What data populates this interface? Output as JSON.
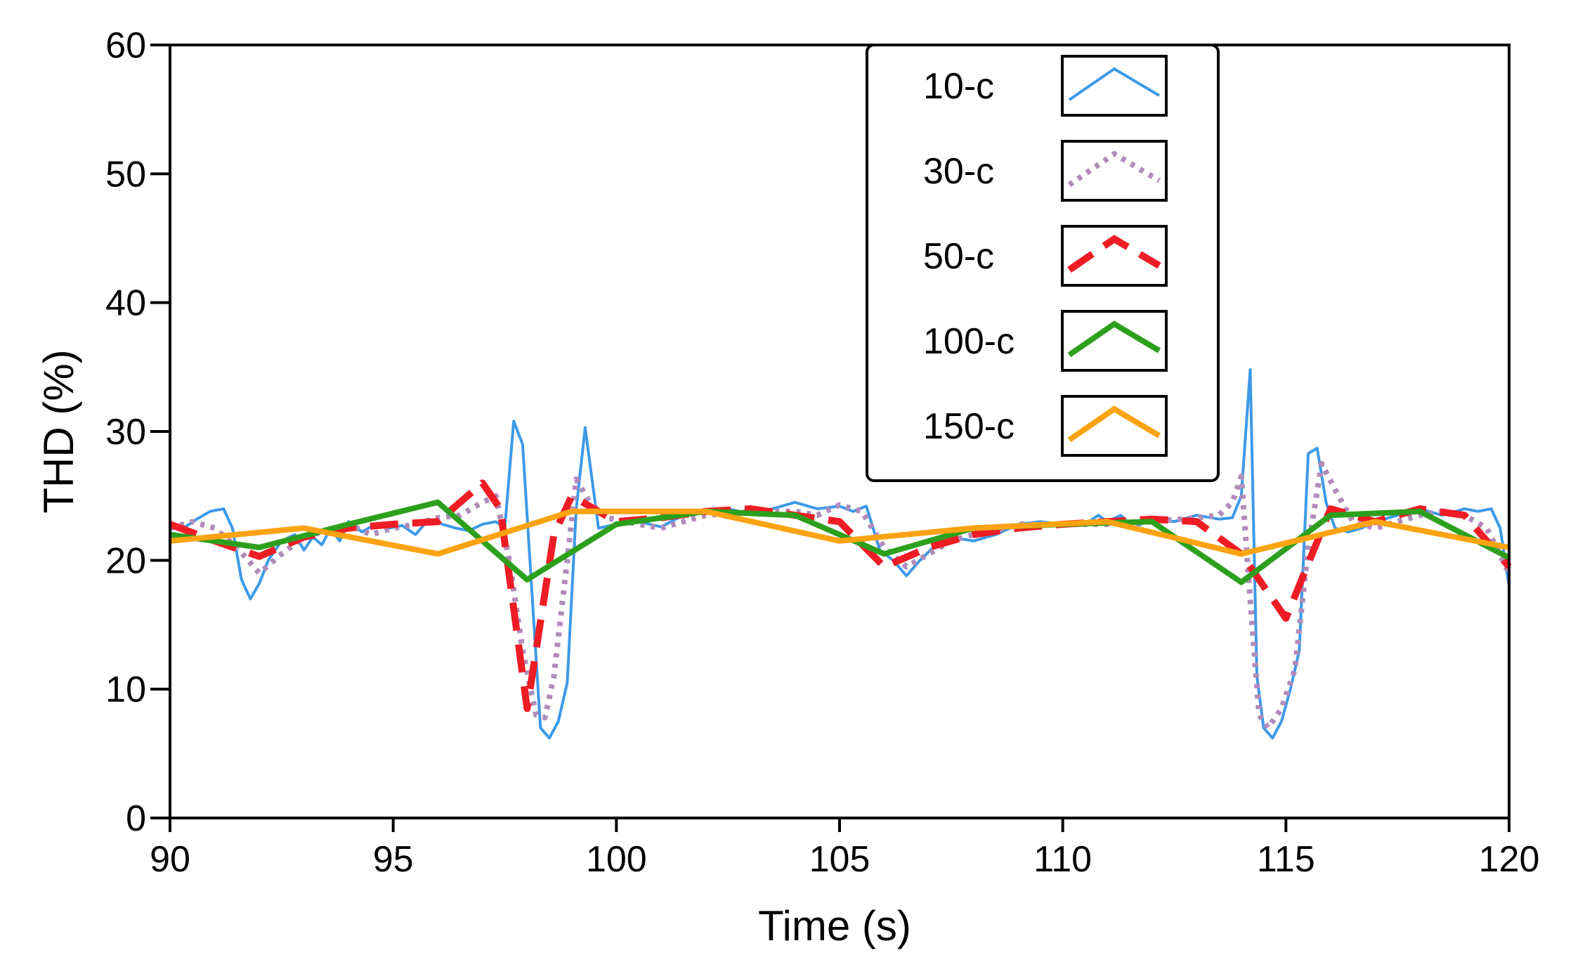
{
  "chart_data": {
    "type": "line",
    "title": "",
    "xlabel": "Time (s)",
    "ylabel": "THD (%)",
    "xlim": [
      90,
      120
    ],
    "ylim": [
      0,
      60
    ],
    "xticks": [
      90,
      95,
      100,
      105,
      110,
      115,
      120
    ],
    "yticks": [
      0,
      10,
      20,
      30,
      40,
      50,
      60
    ],
    "grid": false,
    "legend_position": "top-right",
    "series": [
      {
        "name": "10-c",
        "color": "#3d9ae8",
        "style": "solid-thin",
        "x": [
          90,
          90.3,
          90.6,
          90.9,
          91.2,
          91.4,
          91.6,
          91.8,
          92.0,
          92.2,
          92.5,
          92.8,
          93.0,
          93.2,
          93.4,
          93.6,
          93.8,
          94.0,
          94.3,
          94.6,
          94.9,
          95.2,
          95.5,
          95.8,
          96.1,
          96.4,
          96.7,
          97.0,
          97.3,
          97.5,
          97.7,
          97.9,
          98.1,
          98.3,
          98.5,
          98.7,
          98.9,
          99.1,
          99.3,
          99.6,
          100.0,
          100.5,
          101.0,
          101.5,
          102.0,
          102.5,
          103.0,
          103.5,
          104.0,
          104.5,
          105.0,
          105.3,
          105.6,
          105.9,
          106.2,
          106.5,
          106.8,
          107.1,
          107.5,
          108.0,
          108.5,
          109.0,
          109.5,
          110.0,
          110.5,
          110.8,
          111.0,
          111.3,
          111.6,
          112.0,
          112.5,
          113.0,
          113.5,
          113.8,
          114.0,
          114.2,
          114.35,
          114.5,
          114.7,
          114.9,
          115.1,
          115.3,
          115.5,
          115.7,
          115.9,
          116.1,
          116.4,
          116.7,
          117.0,
          117.5,
          118.0,
          118.5,
          119.0,
          119.3,
          119.6,
          119.8,
          120.0
        ],
        "values": [
          22.8,
          22.5,
          23.2,
          23.8,
          24.0,
          22.5,
          18.5,
          17.0,
          18.2,
          20.0,
          21.5,
          22.0,
          20.8,
          21.8,
          21.2,
          22.5,
          21.5,
          23.0,
          22.2,
          22.8,
          22.5,
          22.7,
          22.0,
          23.2,
          22.8,
          22.5,
          22.3,
          22.8,
          23.0,
          22.5,
          30.8,
          29.0,
          18.0,
          7.0,
          6.2,
          7.5,
          10.5,
          24.0,
          30.3,
          22.5,
          22.8,
          23.0,
          22.6,
          23.5,
          23.8,
          24.0,
          23.6,
          24.0,
          24.5,
          24.0,
          24.2,
          23.8,
          24.2,
          20.8,
          20.0,
          18.8,
          20.0,
          21.0,
          21.8,
          21.5,
          22.0,
          22.8,
          23.0,
          22.8,
          22.8,
          23.5,
          23.0,
          23.5,
          22.5,
          23.3,
          23.0,
          23.5,
          23.2,
          23.3,
          25.0,
          34.8,
          11.0,
          7.0,
          6.2,
          7.5,
          10.0,
          13.0,
          28.3,
          28.7,
          24.5,
          22.5,
          22.2,
          22.5,
          23.0,
          23.5,
          24.0,
          23.5,
          24.0,
          23.8,
          24.0,
          22.5,
          18.0
        ]
      },
      {
        "name": "30-c",
        "color": "#b08cba",
        "style": "dotted",
        "x": [
          90,
          90.5,
          91.0,
          91.5,
          92.0,
          92.5,
          93.0,
          93.5,
          94.0,
          94.5,
          95.0,
          95.5,
          96.0,
          96.5,
          97.0,
          97.3,
          97.6,
          97.9,
          98.2,
          98.4,
          98.6,
          98.9,
          99.1,
          99.4,
          99.8,
          100.5,
          101.0,
          101.5,
          102.0,
          103.0,
          104.0,
          104.5,
          105.0,
          105.5,
          106.0,
          106.5,
          107.0,
          107.5,
          108.0,
          108.5,
          109.0,
          110.0,
          111.0,
          112.0,
          113.0,
          113.5,
          113.8,
          114.0,
          114.2,
          114.4,
          114.6,
          114.9,
          115.2,
          115.5,
          115.8,
          116.1,
          116.5,
          117.0,
          117.5,
          118.0,
          118.5,
          119.0,
          119.5,
          120.0
        ],
        "values": [
          22.5,
          23.0,
          22.5,
          21.0,
          19.0,
          20.5,
          21.8,
          22.3,
          22.8,
          22.0,
          22.5,
          22.8,
          23.3,
          23.5,
          24.5,
          25.0,
          20.0,
          13.0,
          8.0,
          7.8,
          11.0,
          20.0,
          26.3,
          24.5,
          23.3,
          22.8,
          22.5,
          23.0,
          23.5,
          23.8,
          23.8,
          23.5,
          24.3,
          23.8,
          21.0,
          19.5,
          20.5,
          21.5,
          22.0,
          22.3,
          22.8,
          22.8,
          22.8,
          23.0,
          23.3,
          23.5,
          24.5,
          26.5,
          17.0,
          8.0,
          7.0,
          8.5,
          11.5,
          21.0,
          27.5,
          25.5,
          23.0,
          22.5,
          23.0,
          23.5,
          23.8,
          23.5,
          22.5,
          19.0
        ]
      },
      {
        "name": "50-c",
        "color": "#ee1c25",
        "style": "dashed",
        "x": [
          90,
          91,
          92,
          93,
          94,
          95,
          96,
          97,
          97.4,
          98,
          98.6,
          99,
          100,
          101,
          102,
          103,
          104,
          105,
          106,
          107,
          108,
          109,
          110,
          111,
          112,
          113,
          114,
          115,
          116,
          117,
          118,
          119,
          120
        ],
        "values": [
          22.8,
          21.5,
          20.3,
          21.8,
          22.5,
          22.8,
          23.0,
          26.0,
          24.0,
          8.5,
          22.0,
          25.0,
          23.0,
          23.3,
          23.8,
          24.0,
          23.5,
          23.0,
          19.5,
          21.0,
          22.0,
          22.5,
          22.8,
          23.0,
          23.2,
          23.0,
          20.5,
          15.5,
          24.0,
          23.0,
          24.0,
          23.5,
          19.5
        ]
      },
      {
        "name": "100-c",
        "color": "#2ca01c",
        "style": "solid-thick",
        "x": [
          90,
          92,
          94,
          96,
          98,
          100,
          102,
          104,
          106,
          108,
          110,
          112,
          114,
          116,
          118,
          120
        ],
        "values": [
          22.0,
          21.0,
          22.8,
          24.5,
          18.5,
          22.8,
          23.8,
          23.5,
          20.5,
          22.5,
          22.8,
          23.0,
          18.3,
          23.5,
          23.8,
          20.2
        ]
      },
      {
        "name": "150-c",
        "color": "#fca311",
        "style": "solid-thick",
        "x": [
          90,
          93,
          96,
          99,
          102,
          105,
          108,
          111,
          114,
          117,
          120
        ],
        "values": [
          21.5,
          22.5,
          20.5,
          23.8,
          23.8,
          21.5,
          22.5,
          23.0,
          20.5,
          23.0,
          21.0
        ]
      }
    ]
  }
}
